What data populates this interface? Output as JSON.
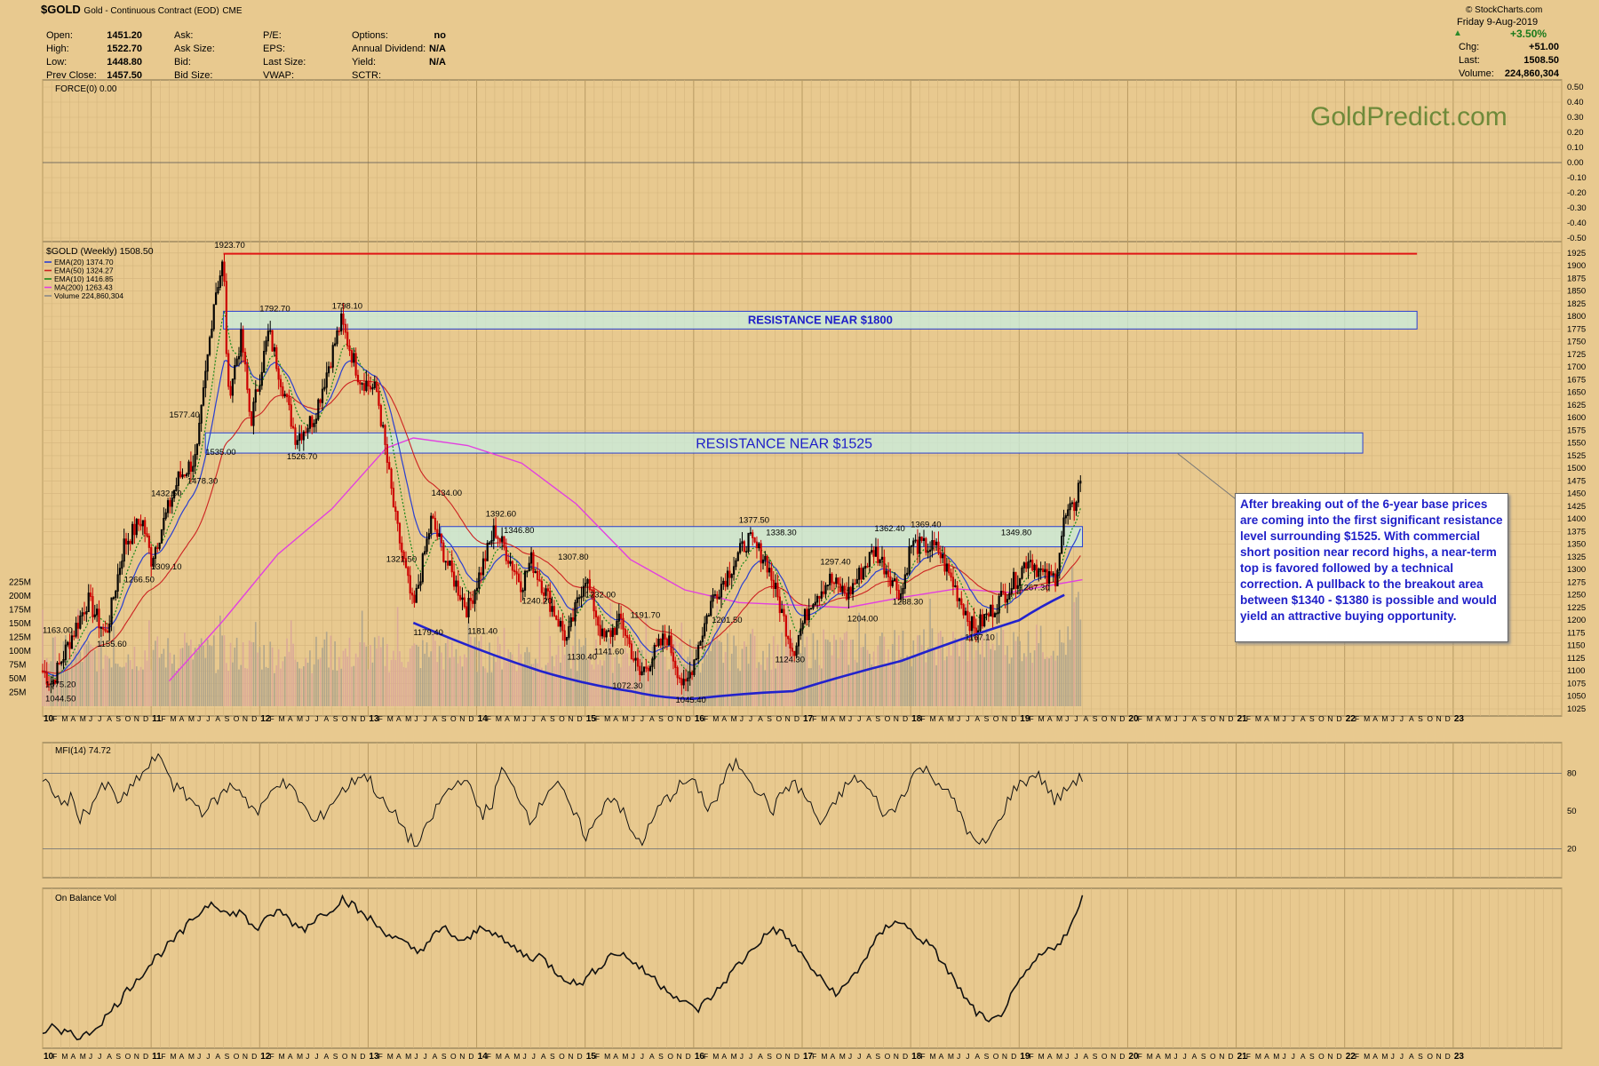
{
  "header": {
    "symbol": "$GOLD",
    "desc": "Gold - Continuous Contract (EOD)",
    "exchange": "CME",
    "credit": "© StockCharts.com",
    "date": "Friday  9-Aug-2019",
    "change_pct": "+3.50%",
    "stats_left": [
      {
        "label": "Open:",
        "value": "1451.20"
      },
      {
        "label": "High:",
        "value": "1522.70"
      },
      {
        "label": "Low:",
        "value": "1448.80"
      },
      {
        "label": "Prev Close:",
        "value": "1457.50"
      }
    ],
    "stats_mid_labels": [
      "Ask:",
      "Ask Size:",
      "Bid:",
      "Bid Size:"
    ],
    "stats_mid2_labels": [
      "P/E:",
      "EPS:",
      "Last Size:",
      "VWAP:"
    ],
    "stats_right": [
      {
        "label": "Options:",
        "value": "no"
      },
      {
        "label": "Annual Dividend:",
        "value": "N/A"
      },
      {
        "label": "Yield:",
        "value": "N/A"
      },
      {
        "label": "SCTR:",
        "value": ""
      }
    ],
    "stats_far": [
      {
        "label": "Chg:",
        "value": "+51.00"
      },
      {
        "label": "Last:",
        "value": "1508.50"
      },
      {
        "label": "Volume:",
        "value": "224,860,304"
      }
    ]
  },
  "watermark": "GoldPredict.com",
  "annotation": "After breaking out of the 6-year base prices are coming into the first significant resistance level surrounding $1525. With commercial short position near record highs, a near-term top is favored followed by a technical correction. A pullback to the breakout area between $1340 - $1380 is possible and would yield an attractive buying opportunity.",
  "colors": {
    "background": "#e8c98f",
    "up": "#000000",
    "down": "#cc0000",
    "ema20": "#2a3fd0",
    "ema50": "#cc2222",
    "ema10": "#1c8a1c",
    "ma200": "#e23fe0",
    "resistance_line": "#e01515",
    "zone_fill": "#c8eee0",
    "zone_border": "#2a3fd0",
    "label_text": "#1e1ec8"
  },
  "chart_data": [
    {
      "type": "line",
      "title": "FORCE(0) 0.00",
      "ylim": [
        -0.5,
        0.5
      ],
      "y_ticks": [
        "0.50",
        "0.40",
        "0.30",
        "0.20",
        "0.10",
        "0.00",
        "-0.10",
        "-0.20",
        "-0.30",
        "-0.40",
        "-0.50"
      ],
      "series": [
        {
          "name": "FORCE(0) 0.00",
          "values": [
            0,
            0
          ]
        }
      ]
    },
    {
      "type": "candlestick",
      "title": "$GOLD (Weekly) 1508.50",
      "x_start": "2010-01",
      "x_end": "2023-12",
      "ylim": [
        1025,
        1930
      ],
      "y_ticks": [
        1925,
        1900,
        1875,
        1850,
        1825,
        1800,
        1775,
        1750,
        1725,
        1700,
        1675,
        1650,
        1625,
        1600,
        1575,
        1550,
        1525,
        1500,
        1475,
        1450,
        1425,
        1400,
        1375,
        1350,
        1325,
        1300,
        1275,
        1250,
        1225,
        1200,
        1175,
        1150,
        1125,
        1100,
        1075,
        1050,
        1025
      ],
      "volume_ticks": [
        {
          "label": "225M",
          "value": 225
        },
        {
          "label": "200M",
          "value": 200
        },
        {
          "label": "175M",
          "value": 175
        },
        {
          "label": "150M",
          "value": 150
        },
        {
          "label": "125M",
          "value": 125
        },
        {
          "label": "100M",
          "value": 100
        },
        {
          "label": "75M",
          "value": 75
        },
        {
          "label": "50M",
          "value": 50
        },
        {
          "label": "25M",
          "value": 25
        }
      ],
      "legend": [
        {
          "name": "EMA(20) 1374.70",
          "color": "#2a3fd0"
        },
        {
          "name": "EMA(50) 1324.27",
          "color": "#cc2222"
        },
        {
          "name": "EMA(10) 1416.85",
          "color": "#1c8a1c"
        },
        {
          "name": "MA(200) 1263.43",
          "color": "#e23fe0"
        },
        {
          "name": "Volume 224,860,304",
          "color": "#888888"
        }
      ],
      "price_anchors": [
        [
          "2010-01",
          1100
        ],
        [
          "2010-02",
          1075
        ],
        [
          "2010-04",
          1160
        ],
        [
          "2010-06",
          1240
        ],
        [
          "2010-08",
          1170
        ],
        [
          "2010-10",
          1350
        ],
        [
          "2010-12",
          1400
        ],
        [
          "2011-01",
          1320
        ],
        [
          "2011-04",
          1480
        ],
        [
          "2011-06",
          1520
        ],
        [
          "2011-08",
          1840
        ],
        [
          "2011-09",
          1910
        ],
        [
          "2011-09.5",
          1640
        ],
        [
          "2011-11",
          1760
        ],
        [
          "2011-12",
          1590
        ],
        [
          "2012-02",
          1770
        ],
        [
          "2012-05",
          1560
        ],
        [
          "2012-07",
          1600
        ],
        [
          "2012-10",
          1790
        ],
        [
          "2012-12",
          1680
        ],
        [
          "2013-02",
          1650
        ],
        [
          "2013-04",
          1400
        ],
        [
          "2013-06",
          1220
        ],
        [
          "2013-08",
          1400
        ],
        [
          "2013-10",
          1300
        ],
        [
          "2013-12",
          1220
        ],
        [
          "2014-03",
          1380
        ],
        [
          "2014-06",
          1270
        ],
        [
          "2014-07",
          1320
        ],
        [
          "2014-11",
          1160
        ],
        [
          "2015-01",
          1290
        ],
        [
          "2015-03",
          1160
        ],
        [
          "2015-05",
          1200
        ],
        [
          "2015-07",
          1090
        ],
        [
          "2015-10",
          1170
        ],
        [
          "2015-12",
          1060
        ],
        [
          "2016-03",
          1240
        ],
        [
          "2016-07",
          1360
        ],
        [
          "2016-09",
          1320
        ],
        [
          "2016-12",
          1140
        ],
        [
          "2017-02",
          1240
        ],
        [
          "2017-04",
          1280
        ],
        [
          "2017-06",
          1250
        ],
        [
          "2017-09",
          1340
        ],
        [
          "2017-12",
          1250
        ],
        [
          "2018-01",
          1350
        ],
        [
          "2018-04",
          1340
        ],
        [
          "2018-06",
          1260
        ],
        [
          "2018-08",
          1180
        ],
        [
          "2018-10",
          1220
        ],
        [
          "2019-01",
          1290
        ],
        [
          "2019-02",
          1325
        ],
        [
          "2019-04",
          1280
        ],
        [
          "2019-05",
          1285
        ],
        [
          "2019-06",
          1400
        ],
        [
          "2019-07",
          1420
        ],
        [
          "2019-08",
          1500
        ]
      ],
      "ma200_anchors": [
        [
          "2011-03",
          1080
        ],
        [
          "2011-09",
          1200
        ],
        [
          "2012-03",
          1330
        ],
        [
          "2012-09",
          1420
        ],
        [
          "2013-03",
          1540
        ],
        [
          "2013-06",
          1560
        ],
        [
          "2013-12",
          1545
        ],
        [
          "2014-06",
          1510
        ],
        [
          "2014-12",
          1430
        ],
        [
          "2015-06",
          1320
        ],
        [
          "2015-12",
          1260
        ],
        [
          "2016-06",
          1235
        ],
        [
          "2016-12",
          1230
        ],
        [
          "2017-06",
          1225
        ],
        [
          "2017-12",
          1245
        ],
        [
          "2018-06",
          1262
        ],
        [
          "2018-12",
          1255
        ],
        [
          "2019-08",
          1280
        ]
      ],
      "resistance_line": {
        "value": 1923.7
      },
      "zones": [
        {
          "label": "RESISTANCE NEAR $1800",
          "low": 1775,
          "high": 1810,
          "from": "2011-09",
          "to": "2022-09"
        },
        {
          "label": "RESISTANCE NEAR $1525",
          "low": 1530,
          "high": 1570,
          "from": "2011-07",
          "to": "2022-03"
        },
        {
          "label": "",
          "low": 1345,
          "high": 1385,
          "from": "2013-09",
          "to": "2019-08"
        }
      ],
      "base_curve": [
        [
          "2013-06",
          1195
        ],
        [
          "2014-08",
          1100
        ],
        [
          "2015-06",
          1060
        ],
        [
          "2016-01",
          1045
        ],
        [
          "2016-12",
          1060
        ],
        [
          "2017-12",
          1120
        ],
        [
          "2019-01",
          1200
        ],
        [
          "2019-06",
          1250
        ]
      ],
      "price_labels": [
        {
          "text": "1163.00",
          "x": "2010-01",
          "y": 1175
        },
        {
          "text": "1075.20",
          "x": "2010-01.3",
          "y": 1068
        },
        {
          "text": "1044.50",
          "x": "2010-01.3",
          "y": 1040
        },
        {
          "text": "1155.60",
          "x": "2010-07",
          "y": 1148
        },
        {
          "text": "1266.50",
          "x": "2010-10",
          "y": 1275
        },
        {
          "text": "1309.10",
          "x": "2011-01",
          "y": 1300
        },
        {
          "text": "1432.50",
          "x": "2011-01",
          "y": 1445
        },
        {
          "text": "1478.30",
          "x": "2011-05",
          "y": 1470
        },
        {
          "text": "1577.40",
          "x": "2011-03",
          "y": 1600
        },
        {
          "text": "1923.70",
          "x": "2011-08",
          "y": 1935
        },
        {
          "text": "1535.00",
          "x": "2011-07",
          "y": 1527
        },
        {
          "text": "1792.70",
          "x": "2012-01",
          "y": 1810
        },
        {
          "text": "1526.70",
          "x": "2012-04",
          "y": 1518
        },
        {
          "text": "1798.10",
          "x": "2012-09",
          "y": 1815
        },
        {
          "text": "1321.50",
          "x": "2013-03",
          "y": 1315
        },
        {
          "text": "1434.00",
          "x": "2013-08",
          "y": 1446
        },
        {
          "text": "1179.40",
          "x": "2013-06",
          "y": 1171
        },
        {
          "text": "1392.60",
          "x": "2014-02",
          "y": 1405
        },
        {
          "text": "1346.80",
          "x": "2014-04",
          "y": 1372
        },
        {
          "text": "1181.40",
          "x": "2013-12",
          "y": 1173
        },
        {
          "text": "1240.20",
          "x": "2014-06",
          "y": 1233
        },
        {
          "text": "1307.80",
          "x": "2014-10",
          "y": 1320
        },
        {
          "text": "1232.00",
          "x": "2015-01",
          "y": 1245
        },
        {
          "text": "1130.40",
          "x": "2014-11",
          "y": 1122
        },
        {
          "text": "1141.60",
          "x": "2015-02",
          "y": 1133
        },
        {
          "text": "1191.70",
          "x": "2015-06",
          "y": 1205
        },
        {
          "text": "1072.30",
          "x": "2015-04",
          "y": 1065
        },
        {
          "text": "1045.40",
          "x": "2015-11",
          "y": 1037
        },
        {
          "text": "1377.50",
          "x": "2016-06",
          "y": 1392
        },
        {
          "text": "1338.30",
          "x": "2016-09",
          "y": 1368
        },
        {
          "text": "1201.50",
          "x": "2016-03",
          "y": 1195
        },
        {
          "text": "1124.30",
          "x": "2016-10",
          "y": 1117
        },
        {
          "text": "1297.40",
          "x": "2017-03",
          "y": 1310
        },
        {
          "text": "1204.00",
          "x": "2017-06",
          "y": 1198
        },
        {
          "text": "1362.40",
          "x": "2017-09",
          "y": 1376
        },
        {
          "text": "1238.30",
          "x": "2017-11",
          "y": 1231
        },
        {
          "text": "1369.40",
          "x": "2018-01",
          "y": 1384
        },
        {
          "text": "1167.10",
          "x": "2018-07",
          "y": 1161
        },
        {
          "text": "1349.80",
          "x": "2018-11",
          "y": 1368
        },
        {
          "text": "1267.30",
          "x": "2019-01",
          "y": 1259
        }
      ],
      "x_axis_labels": [
        "10",
        "F",
        "M",
        "A",
        "M",
        "J",
        "J",
        "A",
        "S",
        "O",
        "N",
        "D",
        "11",
        "F",
        "M",
        "A",
        "M",
        "J",
        "J",
        "A",
        "S",
        "O",
        "N",
        "D",
        "12",
        "F",
        "M",
        "A",
        "M",
        "J",
        "J",
        "A",
        "S",
        "O",
        "N",
        "D",
        "13",
        "F",
        "M",
        "A",
        "M",
        "J",
        "J",
        "A",
        "S",
        "O",
        "N",
        "D",
        "14",
        "F",
        "M",
        "A",
        "M",
        "J",
        "J",
        "A",
        "S",
        "O",
        "N",
        "D",
        "15",
        "F",
        "M",
        "A",
        "M",
        "J",
        "J",
        "A",
        "S",
        "O",
        "N",
        "D",
        "16",
        "F",
        "M",
        "A",
        "M",
        "J",
        "J",
        "A",
        "S",
        "O",
        "N",
        "D",
        "17",
        "F",
        "M",
        "A",
        "M",
        "J",
        "J",
        "A",
        "S",
        "O",
        "N",
        "D",
        "18",
        "F",
        "M",
        "A",
        "M",
        "J",
        "J",
        "A",
        "S",
        "O",
        "N",
        "D",
        "19",
        "F",
        "M",
        "A",
        "M",
        "J",
        "J",
        "A",
        "S",
        "O",
        "N",
        "D",
        "20",
        "F",
        "M",
        "A",
        "M",
        "J",
        "J",
        "A",
        "S",
        "O",
        "N",
        "D",
        "21",
        "F",
        "M",
        "A",
        "M",
        "J",
        "J",
        "A",
        "S",
        "O",
        "N",
        "D",
        "22",
        "F",
        "M",
        "A",
        "M",
        "J",
        "J",
        "A",
        "S",
        "O",
        "N",
        "D",
        "23"
      ]
    },
    {
      "type": "line",
      "title": "MFI(14) 74.72",
      "ylim": [
        0,
        100
      ],
      "y_ticks": [
        80,
        50,
        20
      ],
      "series": [
        {
          "name": "MFI(14) 74.72",
          "values": [
            72,
            68,
            55,
            60,
            45,
            52,
            66,
            70,
            58,
            62,
            75,
            82,
            92,
            88,
            70,
            64,
            58,
            50,
            55,
            62,
            70,
            68,
            56,
            48,
            60,
            74,
            70,
            64,
            52,
            40,
            48,
            58,
            66,
            72,
            80,
            74,
            60,
            50,
            44,
            30,
            22,
            36,
            52,
            64,
            70,
            78,
            60,
            48,
            56,
            84,
            70,
            60,
            44,
            52,
            68,
            74,
            56,
            44,
            30,
            40,
            58,
            62,
            48,
            30,
            26,
            40,
            56,
            62,
            70,
            74,
            68,
            52,
            60,
            80,
            88,
            82,
            70,
            60,
            50,
            66,
            72,
            66,
            54,
            40,
            48,
            62,
            72,
            76,
            68,
            58,
            46,
            52,
            66,
            80,
            84,
            78,
            70,
            60,
            48,
            30,
            22,
            28,
            40,
            58,
            70,
            74,
            80,
            72,
            58,
            64,
            74,
            76
          ]
        }
      ]
    },
    {
      "type": "line",
      "title": "On Balance Vol",
      "series": [
        {
          "name": "On Balance Vol",
          "values": [
            8,
            12,
            6,
            10,
            4,
            8,
            14,
            20,
            28,
            36,
            44,
            50,
            58,
            64,
            70,
            76,
            84,
            90,
            96,
            92,
            86,
            90,
            82,
            78,
            84,
            90,
            86,
            80,
            78,
            84,
            88,
            92,
            98,
            94,
            88,
            84,
            78,
            74,
            70,
            66,
            62,
            68,
            74,
            78,
            72,
            68,
            74,
            80,
            76,
            70,
            66,
            62,
            58,
            60,
            54,
            48,
            44,
            40,
            44,
            50,
            56,
            62,
            60,
            56,
            50,
            46,
            40,
            36,
            30,
            26,
            24,
            30,
            36,
            44,
            52,
            58,
            66,
            72,
            78,
            74,
            68,
            60,
            52,
            44,
            38,
            34,
            42,
            50,
            60,
            70,
            78,
            84,
            80,
            74,
            70,
            64,
            56,
            46,
            36,
            26,
            20,
            14,
            18,
            28,
            38,
            48,
            56,
            62,
            66,
            72,
            82,
            98
          ]
        }
      ]
    }
  ]
}
